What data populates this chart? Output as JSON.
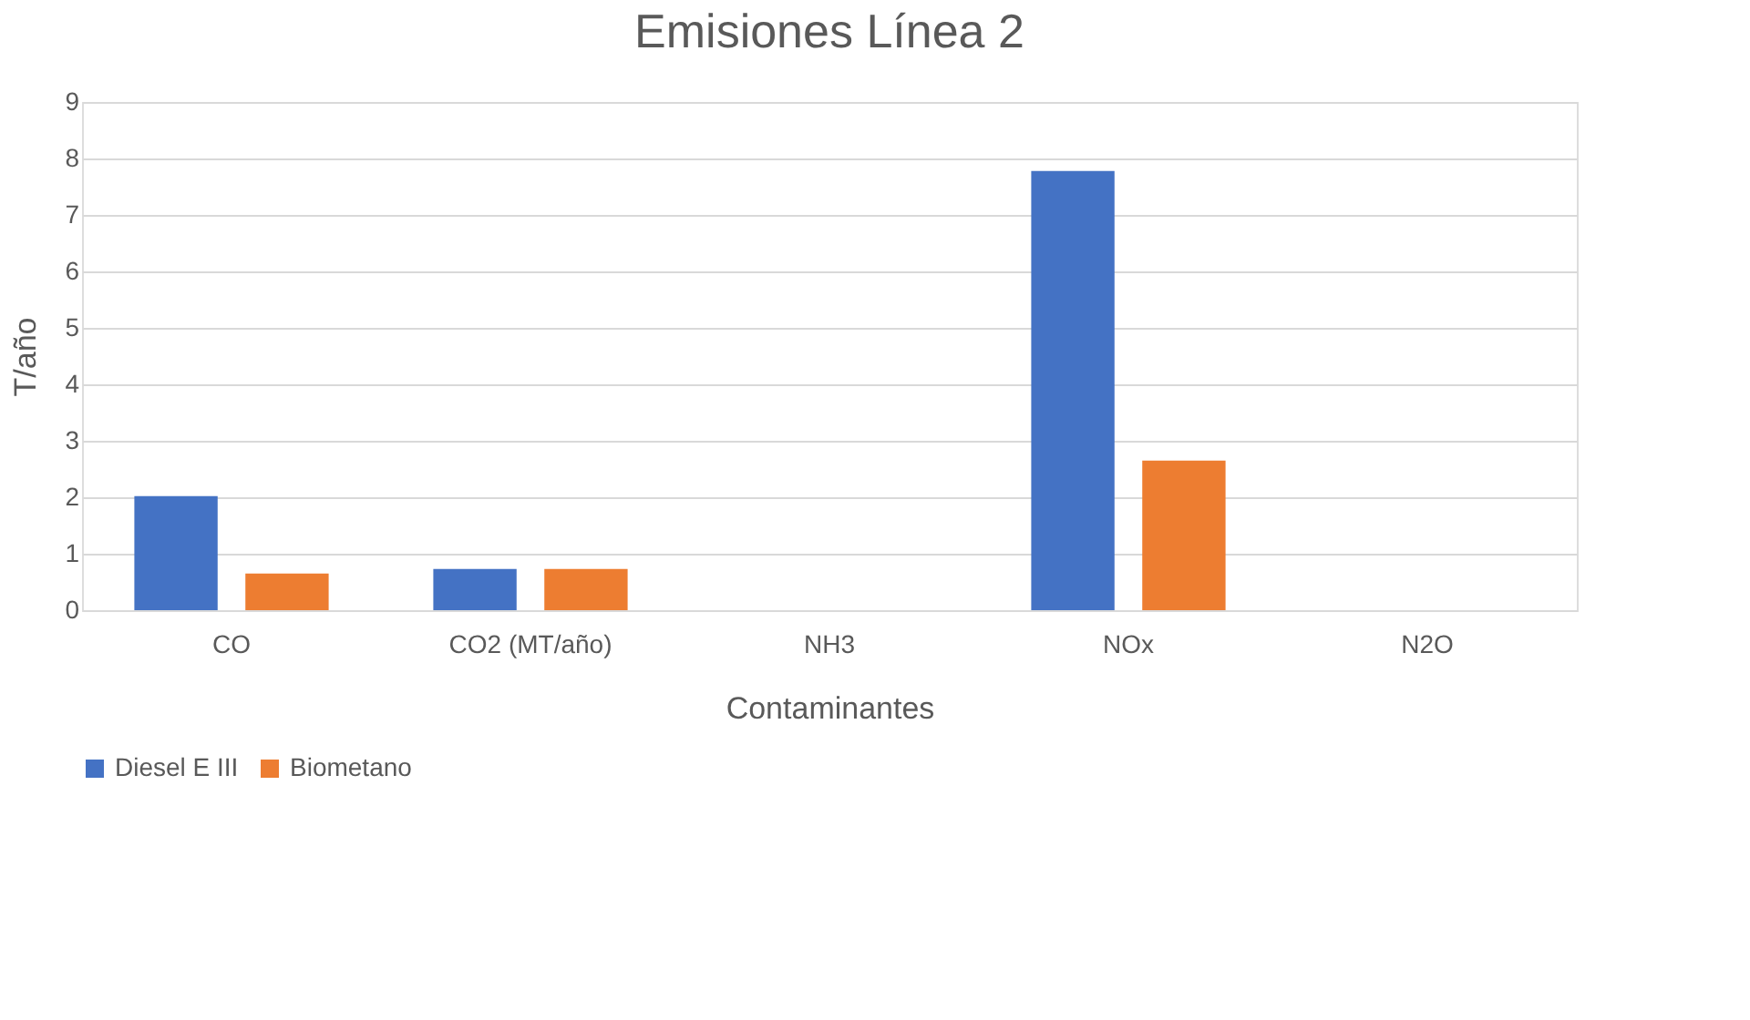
{
  "chart_data": {
    "type": "bar",
    "title": "Emisiones Línea 2",
    "xlabel": "Contaminantes",
    "ylabel": "T/año",
    "categories": [
      "CO",
      "CO2 (MT/año)",
      "NH3",
      "NOx",
      "N2O"
    ],
    "series": [
      {
        "name": "Diesel E III",
        "color": "#4472c4",
        "values": [
          2.02,
          0.73,
          0,
          7.78,
          0
        ]
      },
      {
        "name": "Biometano",
        "color": "#ed7d31",
        "values": [
          0.65,
          0.73,
          0,
          2.65,
          0
        ]
      }
    ],
    "ylim": [
      0,
      9
    ],
    "yticks": [
      0,
      1,
      2,
      3,
      4,
      5,
      6,
      7,
      8,
      9
    ],
    "grid": "y",
    "legend": "bottom"
  }
}
